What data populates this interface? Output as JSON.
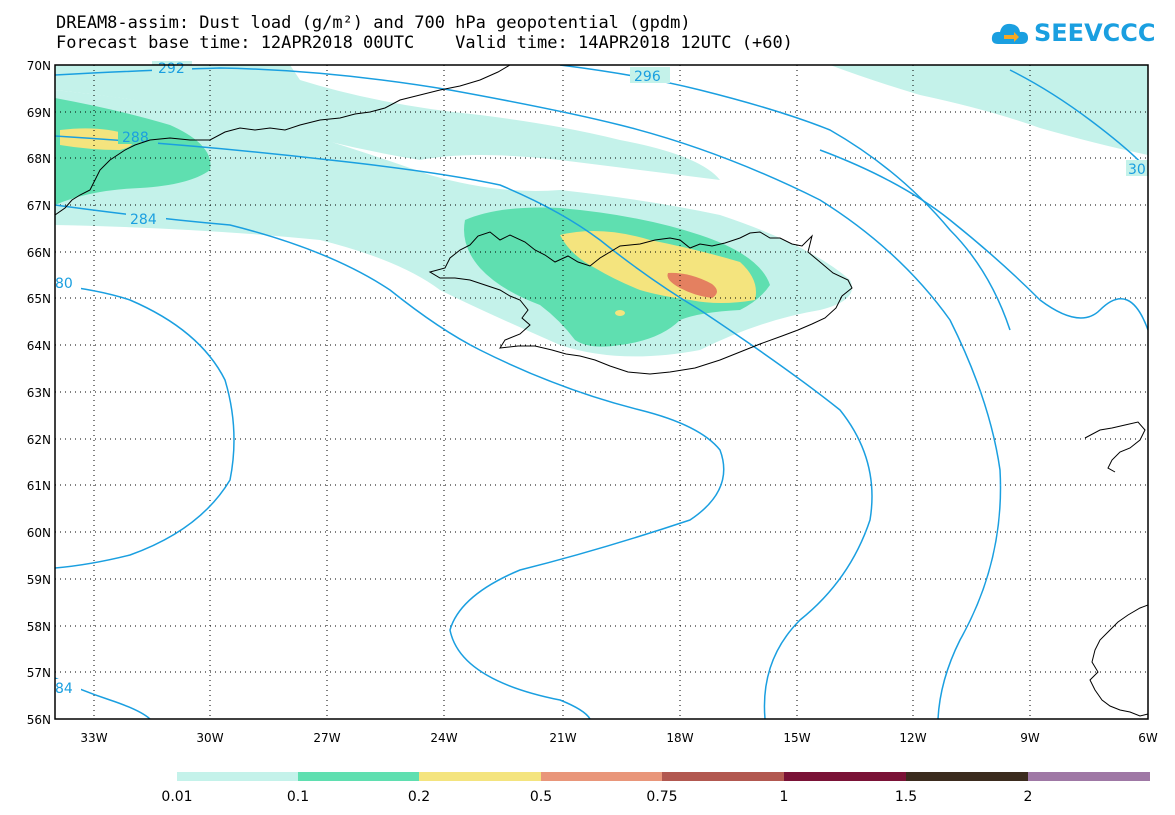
{
  "title": {
    "line1": "DREAM8-assim: Dust load (g/m²) and 700 hPa geopotential (gpdm)",
    "line2": "Forecast base time: 12APR2018 00UTC    Valid time: 14APR2018 12UTC (+60)"
  },
  "logo": {
    "text": "SEEVCCC",
    "icon": "cloud-logo-icon",
    "color": "#1a9fe0"
  },
  "map": {
    "lat_labels": [
      "70N",
      "69N",
      "68N",
      "67N",
      "66N",
      "65N",
      "64N",
      "63N",
      "62N",
      "61N",
      "60N",
      "59N",
      "58N",
      "57N",
      "56N"
    ],
    "lon_labels": [
      "33W",
      "30W",
      "27W",
      "24W",
      "21W",
      "18W",
      "15W",
      "12W",
      "9W",
      "6W"
    ],
    "contour_labels": [
      "292",
      "296",
      "288",
      "284",
      "80",
      "84",
      "30"
    ],
    "contour_color": "#1a9fe0",
    "coast_color": "#000000"
  },
  "colorbar": {
    "labels": [
      "0.01",
      "0.1",
      "0.2",
      "0.5",
      "0.75",
      "1",
      "1.5",
      "2"
    ],
    "colors": [
      "#c4f2ea",
      "#5fdfb0",
      "#f4e47e",
      "#e9967a",
      "#b25850",
      "#7a1236",
      "#3b2b1e",
      "#9f78a5"
    ]
  },
  "dust_levels": {
    "faint": "#c4f2ea",
    "light": "#5fdfb0",
    "medium": "#f4e47e",
    "high": "#e48060"
  }
}
